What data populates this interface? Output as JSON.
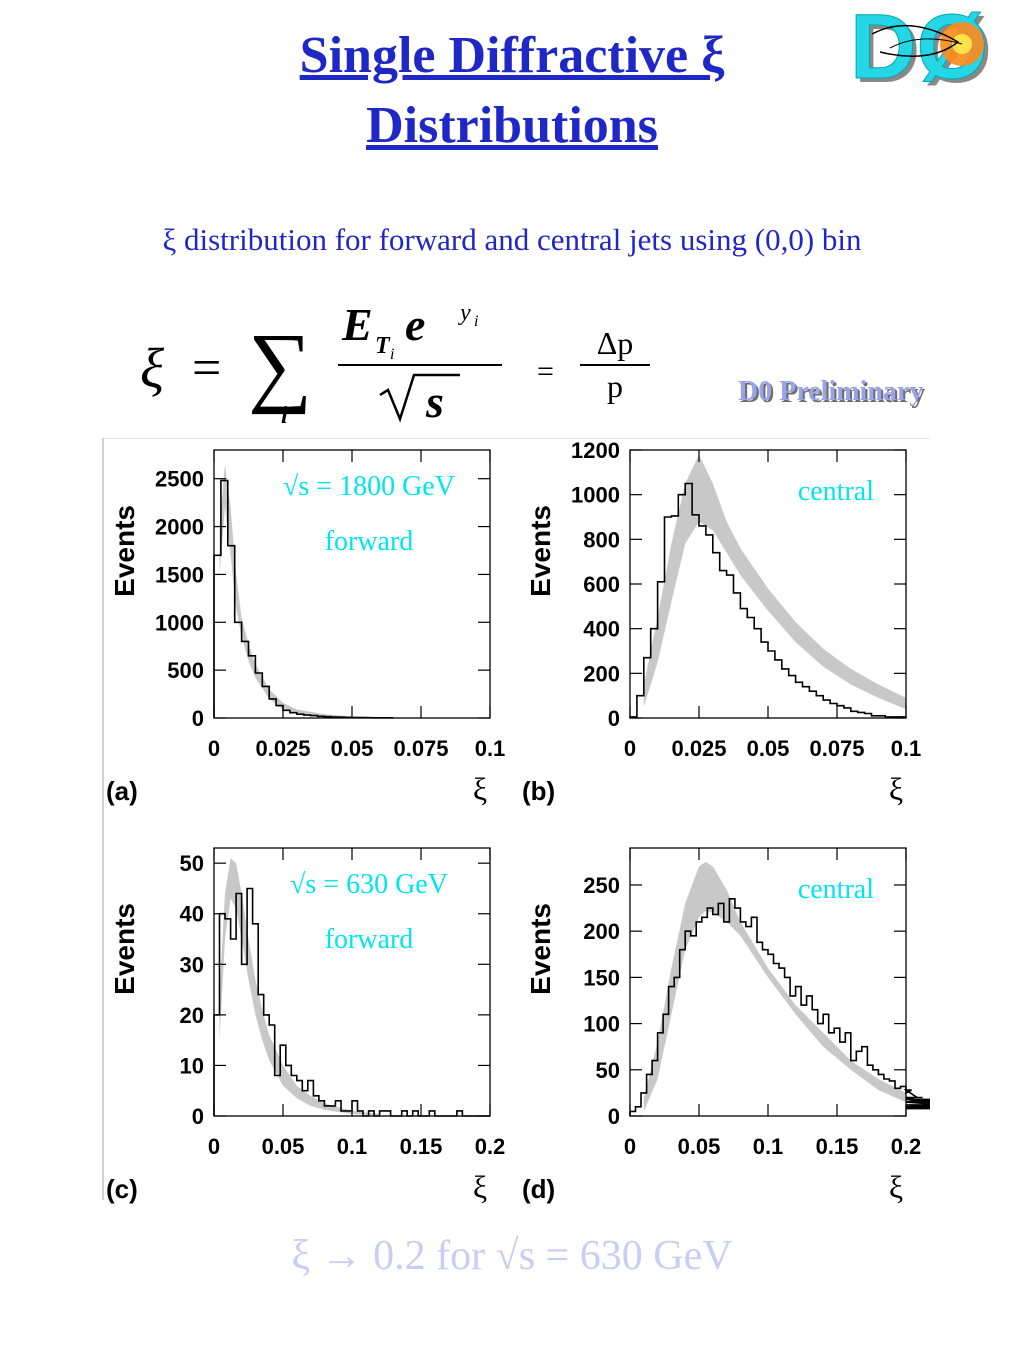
{
  "slide": {
    "title_line1": "Single Diffractive ξ",
    "title_line2": "Distributions",
    "subtitle": "ξ distribution for forward and central jets using (0,0) bin",
    "preliminary": "D0 Preliminary",
    "bottom_text": "ξ → 0.2 for √s = 630 GeV",
    "logo_text": "DØ",
    "equation": {
      "xi": "ξ",
      "equals": "=",
      "sum": "∑",
      "index": "i",
      "numerator_E": "E",
      "numerator_sub": "T",
      "numerator_subsub": "i",
      "numerator_e": "e",
      "exponent": "y",
      "exponent_sub": "i",
      "sqrt_arg": "s",
      "equals2": "=",
      "delta_num": "Δp",
      "delta_den": "p"
    },
    "colors": {
      "title": "#1f27c7",
      "annotation": "#00e5ee",
      "band": "#c8c8c8",
      "prelim": "#9aa3e6",
      "bottom": "#c9cdf2"
    }
  },
  "chart_data": [
    {
      "type": "line",
      "panel_label": "(a)",
      "ylabel": "Events",
      "xlabel": "ξ",
      "xlim": [
        0,
        0.1
      ],
      "ylim": [
        0,
        2800
      ],
      "xticks": [
        0,
        0.025,
        0.05,
        0.075,
        0.1
      ],
      "xticklabels": [
        "0",
        "0.025",
        "0.05",
        "0.075",
        "0.1"
      ],
      "yticks": [
        0,
        500,
        1000,
        1500,
        2000,
        2500
      ],
      "yticklabels": [
        "0",
        "500",
        "1000",
        "1500",
        "2000",
        "2500"
      ],
      "annotations": [
        "√s = 1800 GeV",
        "forward"
      ],
      "data_hist": {
        "bin_width": 0.0025,
        "values": [
          1700,
          2480,
          1800,
          1000,
          800,
          650,
          470,
          330,
          200,
          130,
          80,
          55,
          40,
          30,
          25,
          18,
          14,
          10,
          8,
          6,
          5,
          4,
          3,
          2,
          2,
          2
        ]
      },
      "mc_band": {
        "x": [
          0.002,
          0.004,
          0.006,
          0.008,
          0.01,
          0.0125,
          0.015,
          0.02,
          0.025,
          0.03,
          0.04,
          0.05,
          0.06,
          0.07
        ],
        "upper": [
          2000,
          2650,
          2200,
          1500,
          1050,
          780,
          560,
          300,
          160,
          90,
          40,
          18,
          8,
          3
        ],
        "lower": [
          1500,
          2200,
          1700,
          1150,
          850,
          600,
          420,
          200,
          90,
          45,
          15,
          5,
          2,
          0
        ]
      }
    },
    {
      "type": "line",
      "panel_label": "(b)",
      "ylabel": "Events",
      "xlabel": "ξ",
      "xlim": [
        0,
        0.1
      ],
      "ylim": [
        0,
        1200
      ],
      "xticks": [
        0,
        0.025,
        0.05,
        0.075,
        0.1
      ],
      "xticklabels": [
        "0",
        "0.025",
        "0.05",
        "0.075",
        "0.1"
      ],
      "yticks": [
        0,
        200,
        400,
        600,
        800,
        1000,
        1200
      ],
      "yticklabels": [
        "0",
        "200",
        "400",
        "600",
        "800",
        "1000",
        "1200"
      ],
      "annotations": [
        "central"
      ],
      "data_hist": {
        "bin_width": 0.0025,
        "values": [
          5,
          100,
          270,
          400,
          610,
          900,
          905,
          1000,
          1050,
          910,
          860,
          820,
          740,
          660,
          640,
          560,
          490,
          450,
          400,
          340,
          300,
          260,
          220,
          190,
          160,
          140,
          120,
          100,
          80,
          65,
          55,
          45,
          30,
          25,
          20,
          10,
          10,
          5,
          5,
          5
        ]
      },
      "mc_band": {
        "x": [
          0.005,
          0.01,
          0.015,
          0.02,
          0.025,
          0.03,
          0.035,
          0.04,
          0.05,
          0.06,
          0.07,
          0.08,
          0.09,
          0.1
        ],
        "upper": [
          150,
          450,
          780,
          1050,
          1180,
          1050,
          880,
          760,
          580,
          430,
          310,
          220,
          150,
          90
        ],
        "lower": [
          50,
          250,
          520,
          780,
          880,
          840,
          740,
          640,
          480,
          340,
          230,
          150,
          90,
          40
        ]
      }
    },
    {
      "type": "line",
      "panel_label": "(c)",
      "ylabel": "Events",
      "xlabel": "ξ",
      "xlim": [
        0,
        0.2
      ],
      "ylim": [
        0,
        53
      ],
      "xticks": [
        0,
        0.05,
        0.1,
        0.15,
        0.2
      ],
      "xticklabels": [
        "0",
        "0.05",
        "0.1",
        "0.15",
        "0.2"
      ],
      "yticks": [
        0,
        10,
        20,
        30,
        40,
        50
      ],
      "yticklabels": [
        "0",
        "10",
        "20",
        "30",
        "40",
        "50"
      ],
      "annotations": [
        "√s = 630 GeV",
        "forward"
      ],
      "data_hist": {
        "bin_width": 0.004,
        "values": [
          20,
          40,
          39,
          35,
          44,
          30,
          45,
          38,
          24,
          20,
          18,
          8,
          14,
          10,
          8,
          7,
          5,
          7,
          4,
          3,
          2,
          2,
          3,
          1,
          1,
          3,
          1,
          0,
          1,
          0,
          1,
          1,
          0,
          0,
          1,
          0,
          1,
          0,
          0,
          1,
          0,
          0,
          0,
          0,
          1,
          0,
          0,
          0,
          0,
          0
        ]
      },
      "mc_band": {
        "x": [
          0.004,
          0.008,
          0.012,
          0.016,
          0.02,
          0.025,
          0.03,
          0.035,
          0.04,
          0.05,
          0.06,
          0.07,
          0.08,
          0.1,
          0.12
        ],
        "upper": [
          25,
          44,
          51,
          50,
          44,
          35,
          27,
          21,
          16,
          10,
          6,
          4,
          2.5,
          1,
          0.4
        ],
        "lower": [
          15,
          35,
          43,
          41,
          35,
          27,
          20,
          15,
          11,
          6,
          3.5,
          2,
          1.2,
          0.4,
          0.1
        ]
      }
    },
    {
      "type": "line",
      "panel_label": "(d)",
      "ylabel": "Events",
      "xlabel": "ξ",
      "xlim": [
        0,
        0.2
      ],
      "ylim": [
        0,
        290
      ],
      "xticks": [
        0,
        0.05,
        0.1,
        0.15,
        0.2
      ],
      "xticklabels": [
        "0",
        "0.05",
        "0.1",
        "0.15",
        "0.2"
      ],
      "yticks": [
        0,
        50,
        100,
        150,
        200,
        250
      ],
      "yticklabels": [
        "0",
        "50",
        "100",
        "150",
        "200",
        "250"
      ],
      "annotations": [
        "central"
      ],
      "data_hist": {
        "bin_width": 0.004,
        "values": [
          5,
          10,
          25,
          45,
          60,
          90,
          110,
          140,
          150,
          180,
          200,
          195,
          210,
          215,
          225,
          218,
          230,
          210,
          235,
          225,
          210,
          205,
          215,
          188,
          180,
          175,
          165,
          160,
          150,
          130,
          140,
          120,
          130,
          115,
          100,
          110,
          90,
          95,
          80,
          90,
          60,
          70,
          75,
          55,
          50,
          45,
          40,
          38,
          30,
          32,
          25,
          28,
          20,
          20,
          15,
          18,
          15,
          12,
          10,
          8
        ]
      },
      "mc_band": {
        "x": [
          0.01,
          0.02,
          0.03,
          0.04,
          0.05,
          0.055,
          0.06,
          0.07,
          0.08,
          0.1,
          0.12,
          0.14,
          0.16,
          0.18,
          0.2
        ],
        "upper": [
          20,
          80,
          160,
          230,
          270,
          275,
          270,
          245,
          210,
          160,
          120,
          90,
          60,
          40,
          25
        ],
        "lower": [
          5,
          40,
          110,
          180,
          215,
          222,
          220,
          210,
          195,
          150,
          110,
          75,
          50,
          28,
          15
        ]
      }
    }
  ]
}
